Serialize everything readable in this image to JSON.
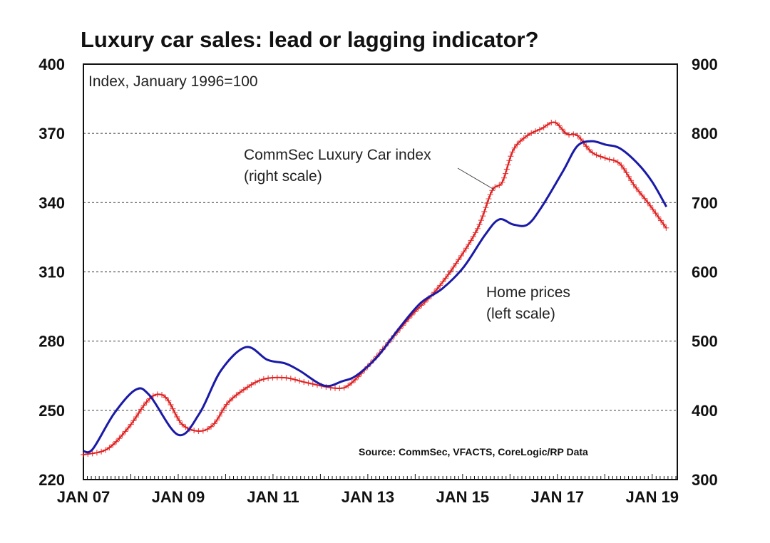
{
  "chart_data": {
    "type": "line",
    "title": "Luxury car sales: lead or lagging indicator?",
    "subtitle": "Index, January 1996=100",
    "source": "Source: CommSec, VFACTS, CoreLogic/RP Data",
    "x_ticks": [
      "JAN 07",
      "JAN 09",
      "JAN 11",
      "JAN 13",
      "JAN 15",
      "JAN 17",
      "JAN 19"
    ],
    "x_tick_values": [
      2007,
      2009,
      2011,
      2013,
      2015,
      2017,
      2019
    ],
    "xlim": [
      2007,
      2019.53
    ],
    "y_left": {
      "ticks": [
        "220",
        "250",
        "280",
        "310",
        "340",
        "370",
        "400"
      ],
      "values": [
        220,
        250,
        280,
        310,
        340,
        370,
        400
      ],
      "ylim": [
        220,
        400
      ]
    },
    "y_right": {
      "ticks": [
        "300",
        "400",
        "500",
        "600",
        "700",
        "800",
        "900"
      ],
      "values": [
        300,
        400,
        500,
        600,
        700,
        800,
        900
      ],
      "ylim": [
        300,
        900
      ]
    },
    "grid": "horizontal dotted",
    "series": [
      {
        "name": "Home prices (left scale)",
        "label_line1": "Home prices",
        "label_line2": "(left scale)",
        "axis": "left",
        "color": "#1a1aa8",
        "points": [
          [
            2007.0,
            232.3
          ],
          [
            2007.2,
            233.3
          ],
          [
            2007.65,
            248.7
          ],
          [
            2008.1,
            258.9
          ],
          [
            2008.4,
            256.4
          ],
          [
            2009.0,
            239.4
          ],
          [
            2009.45,
            248.7
          ],
          [
            2009.9,
            267.2
          ],
          [
            2010.43,
            277.4
          ],
          [
            2010.88,
            271.9
          ],
          [
            2011.26,
            270.3
          ],
          [
            2011.56,
            267.2
          ],
          [
            2012.08,
            260.7
          ],
          [
            2012.46,
            262.6
          ],
          [
            2012.76,
            265.1
          ],
          [
            2013.21,
            273.4
          ],
          [
            2013.67,
            285.8
          ],
          [
            2014.12,
            296.6
          ],
          [
            2014.57,
            302.7
          ],
          [
            2015.02,
            312.0
          ],
          [
            2015.47,
            325.9
          ],
          [
            2015.77,
            332.7
          ],
          [
            2016.07,
            330.5
          ],
          [
            2016.37,
            330.5
          ],
          [
            2016.67,
            338.2
          ],
          [
            2017.12,
            353.7
          ],
          [
            2017.42,
            364.5
          ],
          [
            2017.72,
            366.6
          ],
          [
            2018.02,
            365.1
          ],
          [
            2018.32,
            363.5
          ],
          [
            2018.7,
            356.8
          ],
          [
            2019.0,
            349.0
          ],
          [
            2019.3,
            338.2
          ]
        ]
      },
      {
        "name": "CommSec Luxury Car index (right scale)",
        "label_line1": "CommSec Luxury Car index",
        "label_line2": "(right scale)",
        "axis": "right",
        "color": "#e02020",
        "marker": "plus",
        "points": [
          [
            2007.0,
            336
          ],
          [
            2007.5,
            344
          ],
          [
            2007.95,
            375
          ],
          [
            2008.32,
            411
          ],
          [
            2008.55,
            423
          ],
          [
            2008.77,
            416
          ],
          [
            2009.08,
            380
          ],
          [
            2009.45,
            370
          ],
          [
            2009.75,
            380
          ],
          [
            2010.05,
            411
          ],
          [
            2010.43,
            432
          ],
          [
            2010.8,
            445
          ],
          [
            2011.26,
            447
          ],
          [
            2011.71,
            440
          ],
          [
            2012.31,
            432
          ],
          [
            2012.61,
            437
          ],
          [
            2013.06,
            468
          ],
          [
            2013.51,
            504
          ],
          [
            2013.96,
            540
          ],
          [
            2014.41,
            571
          ],
          [
            2014.86,
            612
          ],
          [
            2015.32,
            663
          ],
          [
            2015.62,
            717
          ],
          [
            2015.84,
            730
          ],
          [
            2016.07,
            776
          ],
          [
            2016.37,
            797
          ],
          [
            2016.67,
            807
          ],
          [
            2016.94,
            816
          ],
          [
            2017.2,
            799
          ],
          [
            2017.42,
            797
          ],
          [
            2017.72,
            773
          ],
          [
            2018.02,
            764
          ],
          [
            2018.32,
            756
          ],
          [
            2018.62,
            725
          ],
          [
            2018.92,
            699
          ],
          [
            2019.3,
            663
          ]
        ]
      }
    ]
  }
}
